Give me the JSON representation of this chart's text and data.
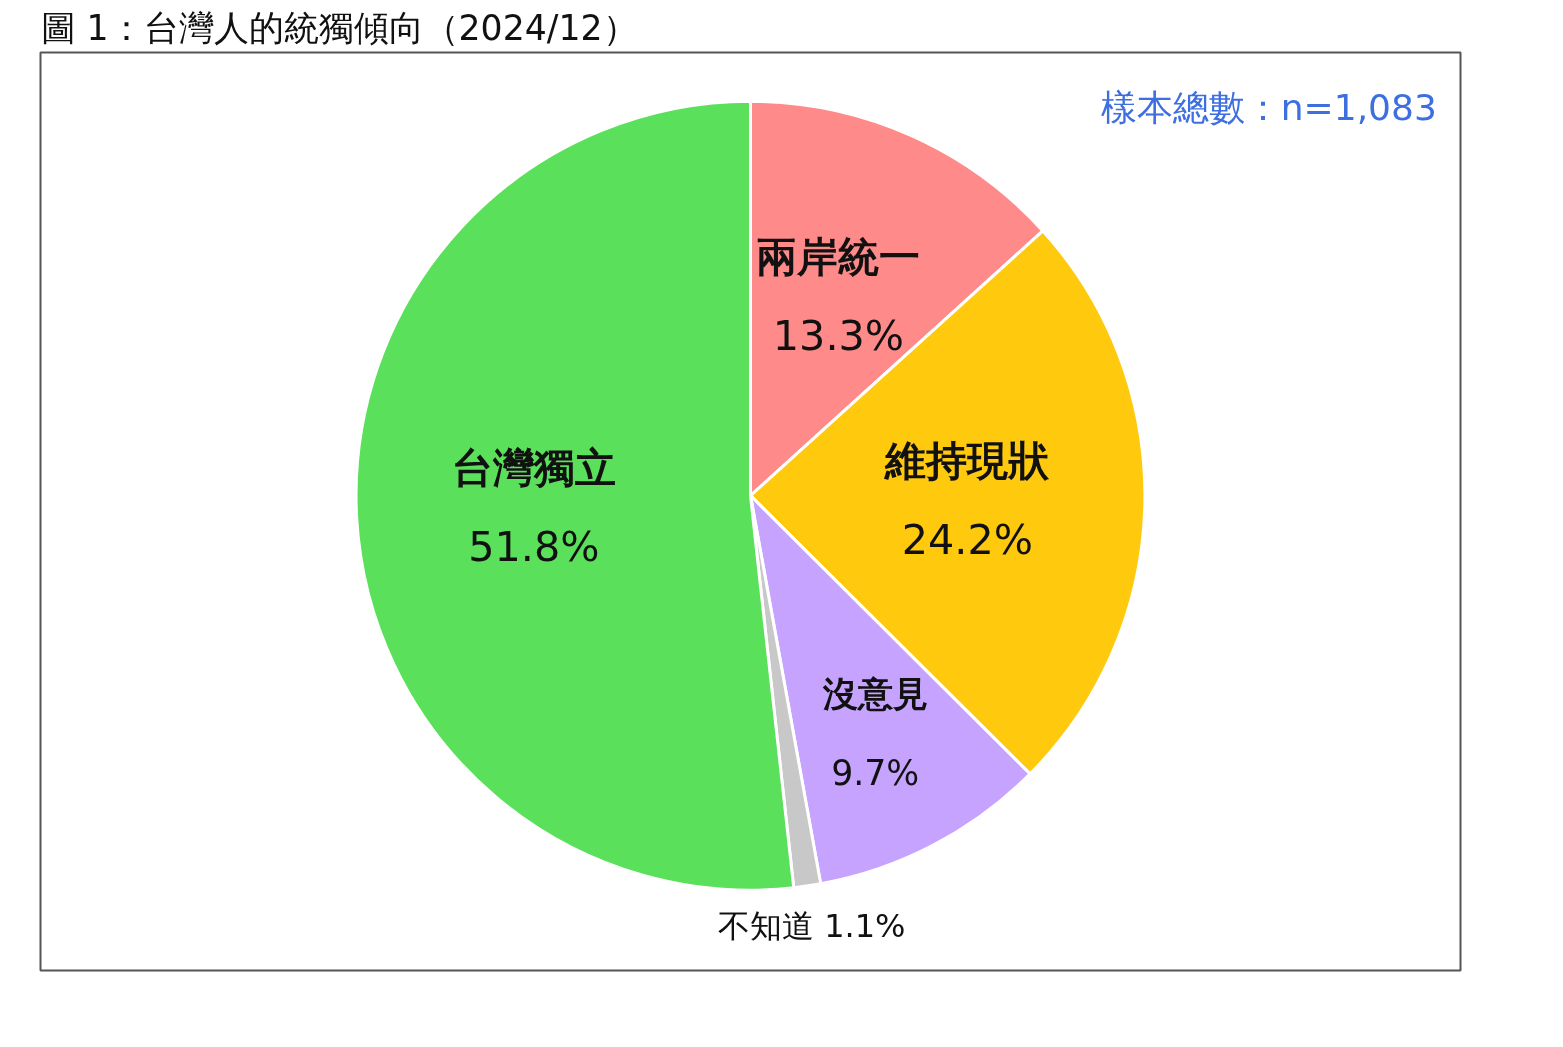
{
  "chart_data": {
    "type": "pie",
    "title": "圖 1：台灣人的統獨傾向（2024/12）",
    "categories": [
      "兩岸統一",
      "維持現狀",
      "沒意見",
      "不知道",
      "台灣獨立"
    ],
    "values": [
      13.3,
      24.2,
      9.7,
      1.1,
      51.8
    ],
    "value_labels": [
      "13.3%",
      "24.2%",
      "9.7%",
      "1.1%",
      "51.8%"
    ],
    "colors": [
      "#ff8a8a",
      "#ffc90e",
      "#c5a3ff",
      "#c8c8c8",
      "#5ae05a"
    ],
    "annotations": [
      "樣本總數：n=1,083"
    ]
  }
}
